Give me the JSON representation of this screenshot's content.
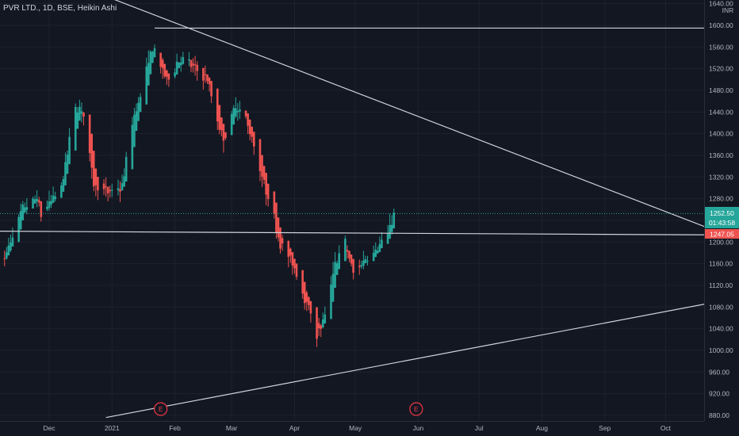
{
  "header": {
    "title": "PVR LTD., 1D, BSE, Heikin Ashi"
  },
  "price_axis": {
    "currency": "INR"
  },
  "price_tags": {
    "last_price": "1252.50",
    "countdown": "01:43:58",
    "line_price": "1247.05"
  },
  "colors": {
    "up": "#26a69a",
    "down": "#ef5350",
    "background": "#131722",
    "trendline": "#d1d4dc"
  },
  "event_markers": [
    {
      "label": "E",
      "date": "2021-01-25"
    },
    {
      "label": "E",
      "date": "2021-05-31"
    }
  ],
  "chart_data": {
    "type": "candlestick",
    "title": "PVR LTD., 1D, BSE, Heikin Ashi",
    "x_ticks": [
      "Dec",
      "2021",
      "Feb",
      "Mar",
      "Apr",
      "May",
      "Jun",
      "Jul",
      "Aug",
      "Sep",
      "Oct"
    ],
    "y_ticks": [
      "1640.00",
      "1600.00",
      "1560.00",
      "1520.00",
      "1480.00",
      "1440.00",
      "1400.00",
      "1360.00",
      "1320.00",
      "1280.00",
      "1240.00",
      "1200.00",
      "1160.00",
      "1120.00",
      "1080.00",
      "1040.00",
      "1000.00",
      "960.00",
      "920.00",
      "880.00"
    ],
    "ylim": [
      876,
      1642
    ],
    "close_path": [
      [
        "2020-11-09",
        1170
      ],
      [
        "2020-11-18",
        1260
      ],
      [
        "2020-11-25",
        1280
      ],
      [
        "2020-11-27",
        1250
      ],
      [
        "2020-12-07",
        1300
      ],
      [
        "2020-12-14",
        1450
      ],
      [
        "2020-12-18",
        1440
      ],
      [
        "2020-12-23",
        1310
      ],
      [
        "2020-12-30",
        1290
      ],
      [
        "2021-01-06",
        1300
      ],
      [
        "2021-01-11",
        1420
      ],
      [
        "2021-01-15",
        1470
      ],
      [
        "2021-01-21",
        1560
      ],
      [
        "2021-01-28",
        1500
      ],
      [
        "2021-02-04",
        1540
      ],
      [
        "2021-02-11",
        1520
      ],
      [
        "2021-02-17",
        1500
      ],
      [
        "2021-02-22",
        1420
      ],
      [
        "2021-02-25",
        1390
      ],
      [
        "2021-03-03",
        1450
      ],
      [
        "2021-03-09",
        1420
      ],
      [
        "2021-03-15",
        1330
      ],
      [
        "2021-03-19",
        1280
      ],
      [
        "2021-03-25",
        1200
      ],
      [
        "2021-03-31",
        1160
      ],
      [
        "2021-04-06",
        1100
      ],
      [
        "2021-04-12",
        1030
      ],
      [
        "2021-04-16",
        1060
      ],
      [
        "2021-04-21",
        1160
      ],
      [
        "2021-04-26",
        1200
      ],
      [
        "2021-04-30",
        1140
      ],
      [
        "2021-05-06",
        1170
      ],
      [
        "2021-05-12",
        1190
      ],
      [
        "2021-05-17",
        1210
      ],
      [
        "2021-05-20",
        1252.5
      ]
    ],
    "trendlines": [
      {
        "name": "resistance-horizontal",
        "from": [
          "2021-01-22",
          1595
        ],
        "to": [
          "2021-10-31",
          1595
        ]
      },
      {
        "name": "descending-resistance",
        "from": [
          "2020-11-06",
          1730
        ],
        "to": [
          "2021-10-31",
          1213
        ]
      },
      {
        "name": "support-horizontal",
        "from": [
          "2020-11-06",
          1220
        ],
        "to": [
          "2021-10-31",
          1213
        ]
      },
      {
        "name": "ascending-support",
        "from": [
          "2020-12-29",
          876
        ],
        "to": [
          "2021-10-31",
          1093
        ]
      }
    ],
    "last_price": 1252.5,
    "grid": true,
    "scale": "linear"
  }
}
